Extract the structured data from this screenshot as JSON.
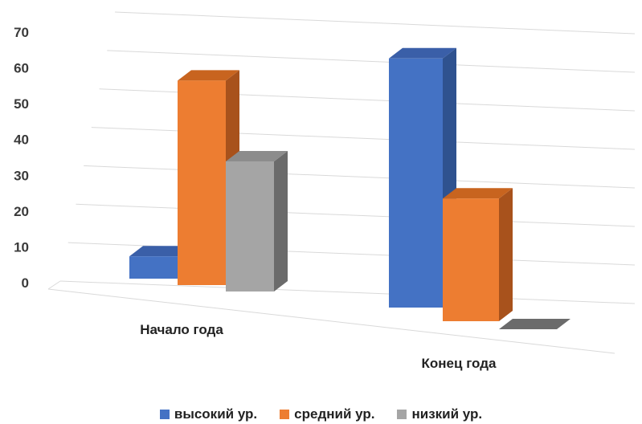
{
  "chart_data": {
    "type": "bar",
    "title": "",
    "xlabel": "",
    "ylabel": "",
    "ylim": [
      0,
      70
    ],
    "y_ticks": [
      "0",
      "10",
      "20",
      "30",
      "40",
      "50",
      "60",
      "70"
    ],
    "categories": [
      "Начало года",
      "Конец года"
    ],
    "series": [
      {
        "name": "высокий ур.",
        "values": [
          6,
          67
        ],
        "color": "#4472C4",
        "side_color": "#2F528F",
        "top_color": "#3A5FA8"
      },
      {
        "name": "средний ур.",
        "values": [
          55,
          33
        ],
        "color": "#ED7D31",
        "side_color": "#A8521C",
        "top_color": "#C8641F"
      },
      {
        "name": "низкий ур.",
        "values": [
          35,
          0
        ],
        "color": "#A5A5A5",
        "side_color": "#6B6B6B",
        "top_color": "#8C8C8C"
      }
    ],
    "grid": true,
    "legend_position": "bottom",
    "style": "3d-clustered-column"
  }
}
